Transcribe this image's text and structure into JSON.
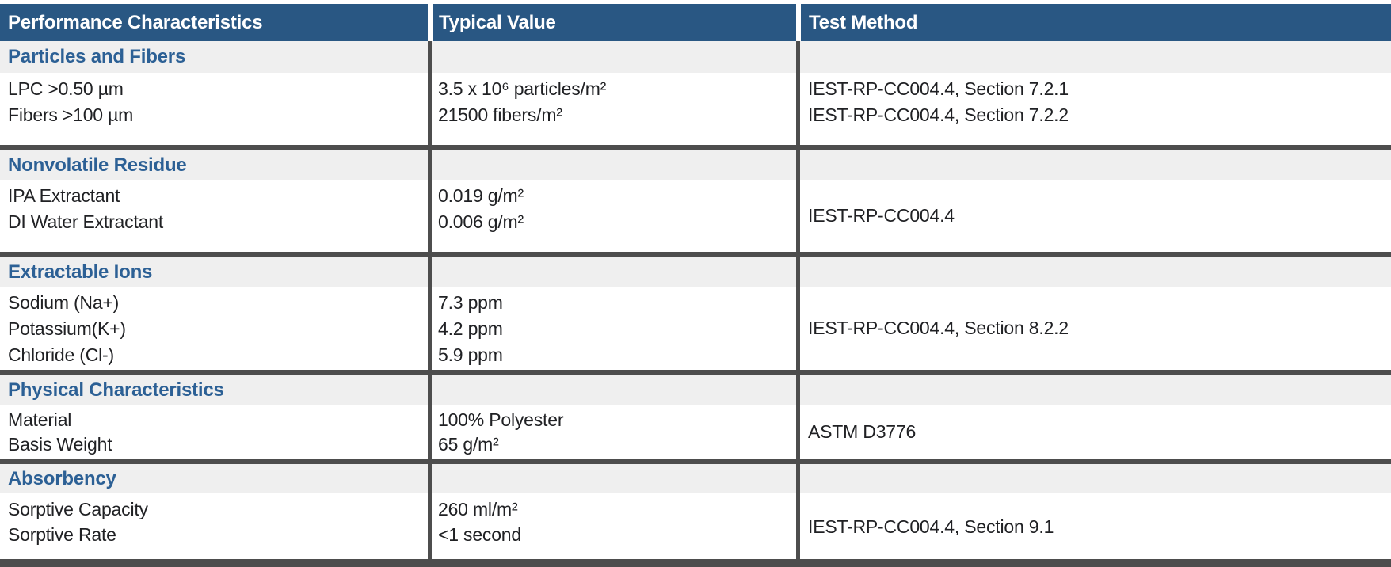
{
  "table": {
    "headers": [
      "Performance Characteristics",
      "Typical Value",
      "Test Method"
    ],
    "groups": [
      {
        "section": "Particles and Fibers",
        "rows": [
          {
            "characteristic": "LPC >0.50 µm",
            "typical_value": "3.5 x 10⁶ particles/m²"
          },
          {
            "characteristic": "Fibers >100 µm",
            "typical_value": "21500 fibers/m²"
          }
        ],
        "test_methods": [
          "IEST-RP-CC004.4, Section 7.2.1",
          "IEST-RP-CC004.4, Section 7.2.2"
        ]
      },
      {
        "section": "Nonvolatile Residue",
        "rows": [
          {
            "characteristic": "IPA Extractant",
            "typical_value": "0.019 g/m²"
          },
          {
            "characteristic": "DI Water Extractant",
            "typical_value": "0.006 g/m²"
          }
        ],
        "test_methods": [
          "IEST-RP-CC004.4"
        ]
      },
      {
        "section": "Extractable Ions",
        "rows": [
          {
            "characteristic": "Sodium (Na+)",
            "typical_value": "7.3 ppm"
          },
          {
            "characteristic": "Potassium(K+)",
            "typical_value": "4.2 ppm"
          },
          {
            "characteristic": "Chloride (Cl-)",
            "typical_value": "5.9 ppm"
          }
        ],
        "test_methods": [
          "IEST-RP-CC004.4, Section 8.2.2"
        ]
      },
      {
        "section": "Physical Characteristics",
        "rows": [
          {
            "characteristic": "Material",
            "typical_value": "100% Polyester"
          },
          {
            "characteristic": "Basis Weight",
            "typical_value": "65 g/m²"
          }
        ],
        "test_methods": [
          "ASTM D3776"
        ]
      },
      {
        "section": "Absorbency",
        "rows": [
          {
            "characteristic": "Sorptive Capacity",
            "typical_value": "260 ml/m²"
          },
          {
            "characteristic": "Sorptive Rate",
            "typical_value": "<1 second"
          }
        ],
        "test_methods": [
          "IEST-RP-CC004.4, Section 9.1"
        ]
      }
    ]
  },
  "colors": {
    "header-bg": "#295783",
    "header-text": "#ffffff",
    "section-bg": "#efefef",
    "section-text": "#2c6095",
    "grid-line": "#4d4d4d",
    "body-text": "#202124"
  }
}
